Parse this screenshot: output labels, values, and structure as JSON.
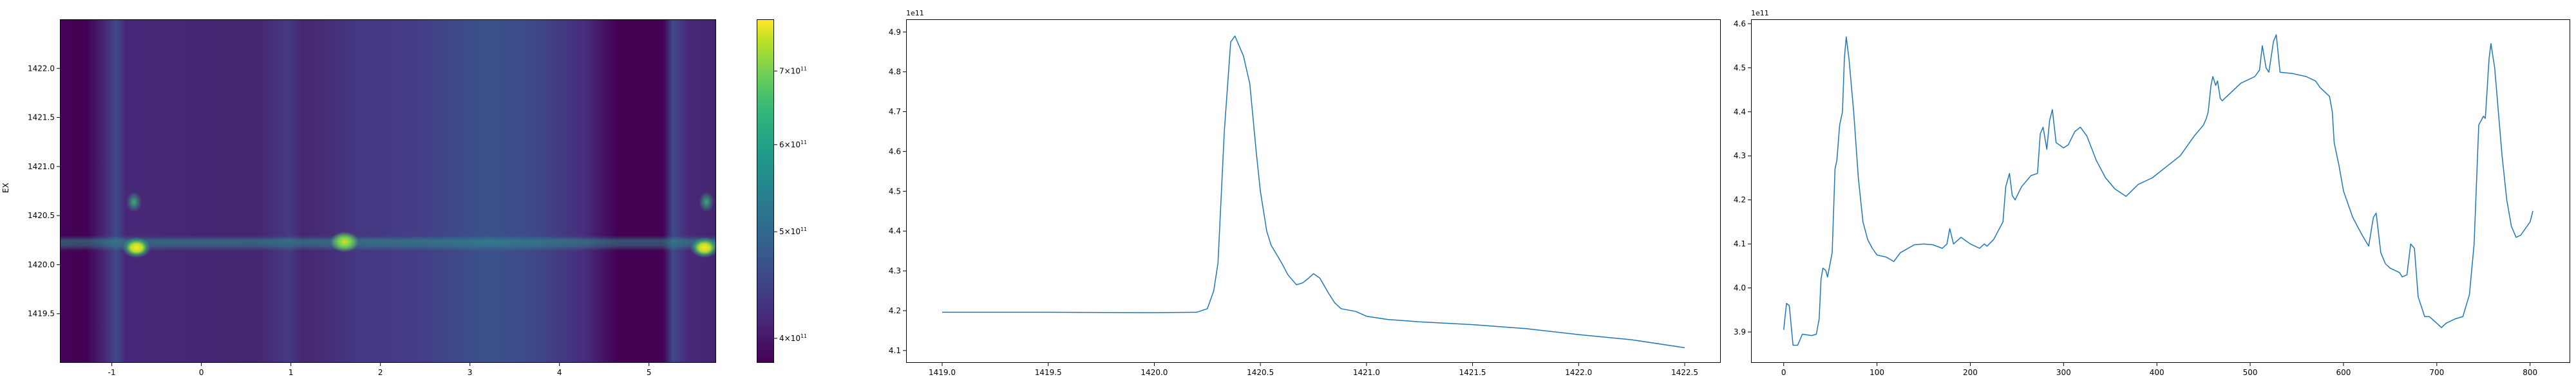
{
  "chart_data": [
    {
      "type": "heatmap",
      "xlim": [
        -1.58,
        5.75
      ],
      "ylim": [
        1419.0,
        1422.5
      ],
      "xticks": [
        "-1",
        "0",
        "1",
        "2",
        "3",
        "4",
        "5"
      ],
      "xtick_values": [
        -1,
        0,
        1,
        2,
        3,
        4,
        5
      ],
      "yticks": [
        "1419.5",
        "1420.0",
        "1420.5",
        "1421.0",
        "1421.5",
        "1422.0"
      ],
      "ytick_values": [
        1419.5,
        1420.0,
        1420.5,
        1421.0,
        1421.5,
        1422.0
      ],
      "ylabel": "EX",
      "xlabel": "",
      "colormap": "viridis",
      "colorbar": {
        "scale": "log",
        "range": [
          380000000000.0,
          780000000000.0
        ],
        "ticks": [
          {
            "mant": "4",
            "exp": "11",
            "value": 400000000000.0
          },
          {
            "mant": "5",
            "exp": "11",
            "value": 500000000000.0
          },
          {
            "mant": "6",
            "exp": "11",
            "value": 600000000000.0
          },
          {
            "mant": "7",
            "exp": "11",
            "value": 700000000000.0
          }
        ]
      },
      "hotspots": [
        {
          "x": -0.95,
          "y": 1420.4,
          "value": 780000000000.0
        },
        {
          "x": 1.35,
          "y": 1420.42,
          "value": 720000000000.0
        },
        {
          "x": 5.35,
          "y": 1420.4,
          "value": 780000000000.0
        }
      ]
    },
    {
      "type": "line",
      "xlim": [
        1418.83,
        1422.67
      ],
      "ylim": [
        4.069,
        4.932
      ],
      "offset_label": "1e11",
      "xticks": [
        "1419.0",
        "1419.5",
        "1420.0",
        "1420.5",
        "1421.0",
        "1421.5",
        "1422.0",
        "1422.5"
      ],
      "xtick_values": [
        1419.0,
        1419.5,
        1420.0,
        1420.5,
        1421.0,
        1421.5,
        1422.0,
        1422.5
      ],
      "yticks": [
        "4.1",
        "4.2",
        "4.3",
        "4.4",
        "4.5",
        "4.6",
        "4.7",
        "4.8",
        "4.9"
      ],
      "ytick_values": [
        4.1,
        4.2,
        4.3,
        4.4,
        4.5,
        4.6,
        4.7,
        4.8,
        4.9
      ],
      "color": "#1f77b4",
      "x": [
        1419.0,
        1419.5,
        1420.0,
        1420.2,
        1420.25,
        1420.28,
        1420.3,
        1420.33,
        1420.35,
        1420.36,
        1420.38,
        1420.42,
        1420.45,
        1420.48,
        1420.5,
        1420.53,
        1420.55,
        1420.6,
        1420.63,
        1420.67,
        1420.7,
        1420.73,
        1420.75,
        1420.78,
        1420.82,
        1420.85,
        1420.88,
        1420.95,
        1421.0,
        1421.1,
        1421.25,
        1421.5,
        1421.75,
        1422.0,
        1422.25,
        1422.5
      ],
      "y": [
        4.196,
        4.196,
        4.195,
        4.196,
        4.205,
        4.25,
        4.32,
        4.65,
        4.8,
        4.875,
        4.89,
        4.84,
        4.77,
        4.6,
        4.5,
        4.4,
        4.365,
        4.32,
        4.29,
        4.265,
        4.27,
        4.283,
        4.293,
        4.282,
        4.245,
        4.22,
        4.205,
        4.198,
        4.186,
        4.178,
        4.172,
        4.165,
        4.155,
        4.14,
        4.127,
        4.107
      ]
    },
    {
      "type": "line",
      "xlim": [
        -35,
        843
      ],
      "ylim": [
        3.83,
        4.61
      ],
      "offset_label": "1e11",
      "xticks": [
        "0",
        "100",
        "200",
        "300",
        "400",
        "500",
        "600",
        "700",
        "800"
      ],
      "xtick_values": [
        0,
        100,
        200,
        300,
        400,
        500,
        600,
        700,
        800
      ],
      "yticks": [
        "3.9",
        "4.0",
        "4.1",
        "4.2",
        "4.3",
        "4.4",
        "4.5",
        "4.6"
      ],
      "ytick_values": [
        3.9,
        4.0,
        4.1,
        4.2,
        4.3,
        4.4,
        4.5,
        4.6
      ],
      "color": "#1f77b4",
      "x": [
        0,
        3,
        6,
        10,
        15,
        20,
        30,
        35,
        38,
        40,
        42,
        45,
        47,
        52,
        55,
        57,
        60,
        63,
        65,
        67,
        70,
        75,
        80,
        85,
        90,
        95,
        100,
        110,
        118,
        125,
        140,
        150,
        160,
        170,
        175,
        178,
        182,
        190,
        200,
        210,
        215,
        218,
        225,
        235,
        238,
        242,
        245,
        248,
        255,
        265,
        272,
        275,
        278,
        282,
        285,
        288,
        292,
        300,
        305,
        312,
        318,
        325,
        335,
        345,
        355,
        367,
        380,
        395,
        410,
        425,
        440,
        450,
        453,
        455,
        458,
        460,
        463,
        465,
        468,
        470,
        490,
        505,
        510,
        513,
        517,
        520,
        525,
        528,
        532,
        545,
        560,
        570,
        575,
        585,
        588,
        590,
        595,
        600,
        610,
        620,
        627,
        632,
        635,
        640,
        645,
        650,
        660,
        663,
        668,
        672,
        676,
        680,
        687,
        692,
        700,
        705,
        710,
        720,
        728,
        735,
        740,
        745,
        750,
        752,
        756,
        758,
        762,
        770,
        775,
        780,
        785,
        790,
        800,
        803
      ],
      "y": [
        3.905,
        3.965,
        3.96,
        3.87,
        3.87,
        3.895,
        3.892,
        3.895,
        3.93,
        4.02,
        4.045,
        4.04,
        4.025,
        4.08,
        4.27,
        4.29,
        4.37,
        4.4,
        4.52,
        4.57,
        4.52,
        4.4,
        4.25,
        4.15,
        4.11,
        4.09,
        4.075,
        4.07,
        4.06,
        4.08,
        4.098,
        4.1,
        4.098,
        4.09,
        4.1,
        4.135,
        4.1,
        4.115,
        4.1,
        4.09,
        4.1,
        4.095,
        4.11,
        4.15,
        4.23,
        4.26,
        4.21,
        4.2,
        4.23,
        4.255,
        4.26,
        4.35,
        4.365,
        4.315,
        4.38,
        4.405,
        4.33,
        4.318,
        4.325,
        4.355,
        4.365,
        4.345,
        4.29,
        4.25,
        4.225,
        4.208,
        4.235,
        4.25,
        4.275,
        4.3,
        4.345,
        4.37,
        4.385,
        4.4,
        4.46,
        4.48,
        4.46,
        4.47,
        4.43,
        4.425,
        4.465,
        4.48,
        4.495,
        4.55,
        4.5,
        4.49,
        4.56,
        4.575,
        4.49,
        4.487,
        4.48,
        4.47,
        4.455,
        4.435,
        4.4,
        4.33,
        4.28,
        4.22,
        4.16,
        4.12,
        4.095,
        4.16,
        4.17,
        4.08,
        4.055,
        4.045,
        4.035,
        4.025,
        4.03,
        4.1,
        4.09,
        3.98,
        3.935,
        3.935,
        3.92,
        3.91,
        3.92,
        3.93,
        3.935,
        3.985,
        4.1,
        4.37,
        4.39,
        4.385,
        4.52,
        4.555,
        4.5,
        4.3,
        4.2,
        4.14,
        4.115,
        4.12,
        4.15,
        4.175
      ]
    }
  ]
}
